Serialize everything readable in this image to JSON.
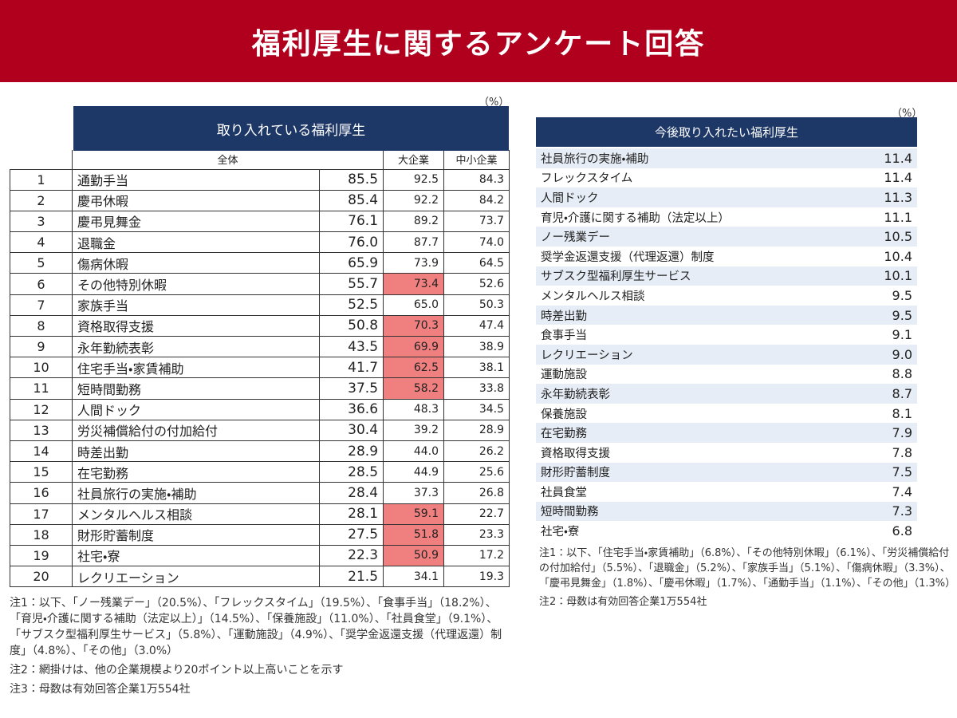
{
  "header": {
    "title": "福利厚生に関するアンケート回答"
  },
  "left_table": {
    "unit": "（%）",
    "title": "取り入れている福利厚生",
    "columns": {
      "total": "全体",
      "large": "大企業",
      "sme": "中小企業"
    },
    "rows": [
      {
        "rank": "1",
        "item": "通勤手当",
        "total": "85.5",
        "large": "92.5",
        "sme": "84.3",
        "highlight": false
      },
      {
        "rank": "2",
        "item": "慶弔休暇",
        "total": "85.4",
        "large": "92.2",
        "sme": "84.2",
        "highlight": false
      },
      {
        "rank": "3",
        "item": "慶弔見舞金",
        "total": "76.1",
        "large": "89.2",
        "sme": "73.7",
        "highlight": false
      },
      {
        "rank": "4",
        "item": "退職金",
        "total": "76.0",
        "large": "87.7",
        "sme": "74.0",
        "highlight": false
      },
      {
        "rank": "5",
        "item": "傷病休暇",
        "total": "65.9",
        "large": "73.9",
        "sme": "64.5",
        "highlight": false
      },
      {
        "rank": "6",
        "item": "その他特別休暇",
        "total": "55.7",
        "large": "73.4",
        "sme": "52.6",
        "highlight": true
      },
      {
        "rank": "7",
        "item": "家族手当",
        "total": "52.5",
        "large": "65.0",
        "sme": "50.3",
        "highlight": false
      },
      {
        "rank": "8",
        "item": "資格取得支援",
        "total": "50.8",
        "large": "70.3",
        "sme": "47.4",
        "highlight": true
      },
      {
        "rank": "9",
        "item": "永年勤続表彰",
        "total": "43.5",
        "large": "69.9",
        "sme": "38.9",
        "highlight": true
      },
      {
        "rank": "10",
        "item": "住宅手当・家賃補助",
        "total": "41.7",
        "large": "62.5",
        "sme": "38.1",
        "highlight": true
      },
      {
        "rank": "11",
        "item": "短時間勤務",
        "total": "37.5",
        "large": "58.2",
        "sme": "33.8",
        "highlight": true
      },
      {
        "rank": "12",
        "item": "人間ドック",
        "total": "36.6",
        "large": "48.3",
        "sme": "34.5",
        "highlight": false
      },
      {
        "rank": "13",
        "item": "労災補償給付の付加給付",
        "total": "30.4",
        "large": "39.2",
        "sme": "28.9",
        "highlight": false
      },
      {
        "rank": "14",
        "item": "時差出勤",
        "total": "28.9",
        "large": "44.0",
        "sme": "26.2",
        "highlight": false
      },
      {
        "rank": "15",
        "item": "在宅勤務",
        "total": "28.5",
        "large": "44.9",
        "sme": "25.6",
        "highlight": false
      },
      {
        "rank": "16",
        "item": "社員旅行の実施・補助",
        "total": "28.4",
        "large": "37.3",
        "sme": "26.8",
        "highlight": false
      },
      {
        "rank": "17",
        "item": "メンタルヘルス相談",
        "total": "28.1",
        "large": "59.1",
        "sme": "22.7",
        "highlight": true
      },
      {
        "rank": "18",
        "item": "財形貯蓄制度",
        "total": "27.5",
        "large": "51.8",
        "sme": "23.3",
        "highlight": true
      },
      {
        "rank": "19",
        "item": "社宅・寮",
        "total": "22.3",
        "large": "50.9",
        "sme": "17.2",
        "highlight": true
      },
      {
        "rank": "20",
        "item": "レクリエーション",
        "total": "21.5",
        "large": "34.1",
        "sme": "19.3",
        "highlight": false
      }
    ],
    "notes": [
      "注1：以下、「ノー残業デー」（20.5%）、「フレックスタイム」（19.5%）、「食事手当」（18.2%）、「育児・介護に関する補助（法定以上）」（14.5%）、「保養施設」（11.0%）、「社員食堂」（9.1%）、「サブスク型福利厚生サービス」（5.8%）、「運動施設」（4.9%）、「奨学金返還支援（代理返還）制度」（4.8%）、「その他」（3.0%）",
      "注2：網掛けは、他の企業規模より20ポイント以上高いことを示す",
      "注3：母数は有効回答企業1万554社"
    ]
  },
  "right_table": {
    "unit": "（%）",
    "title": "今後取り入れたい福利厚生",
    "rows": [
      {
        "item": "社員旅行の実施・補助",
        "value": "11.4"
      },
      {
        "item": "フレックスタイム",
        "value": "11.4"
      },
      {
        "item": "人間ドック",
        "value": "11.3"
      },
      {
        "item": "育児・介護に関する補助（法定以上）",
        "value": "11.1"
      },
      {
        "item": "ノー残業デー",
        "value": "10.5"
      },
      {
        "item": "奨学金返還支援（代理返還）制度",
        "value": "10.4"
      },
      {
        "item": "サブスク型福利厚生サービス",
        "value": "10.1"
      },
      {
        "item": "メンタルヘルス相談",
        "value": "9.5"
      },
      {
        "item": "時差出勤",
        "value": "9.5"
      },
      {
        "item": "食事手当",
        "value": "9.1"
      },
      {
        "item": "レクリエーション",
        "value": "9.0"
      },
      {
        "item": "運動施設",
        "value": "8.8"
      },
      {
        "item": "永年勤続表彰",
        "value": "8.7"
      },
      {
        "item": "保養施設",
        "value": "8.1"
      },
      {
        "item": "在宅勤務",
        "value": "7.9"
      },
      {
        "item": "資格取得支援",
        "value": "7.8"
      },
      {
        "item": "財形貯蓄制度",
        "value": "7.5"
      },
      {
        "item": "社員食堂",
        "value": "7.4"
      },
      {
        "item": "短時間勤務",
        "value": "7.3"
      },
      {
        "item": "社宅・寮",
        "value": "6.8"
      }
    ],
    "notes": [
      "注1：以下、「住宅手当・家賃補助」（6.8%）、「その他特別休暇」（6.1%）、「労災補償給付の付加給付」（5.5%）、「退職金」（5.2%）、「家族手当」（5.1%）、「傷病休暇」（3.3%）、「慶弔見舞金」（1.8%）、「慶弔休暇」（1.7%）、「通勤手当」（1.1%）、「その他」（1.3%）",
      "注2：母数は有効回答企業1万554社"
    ]
  }
}
